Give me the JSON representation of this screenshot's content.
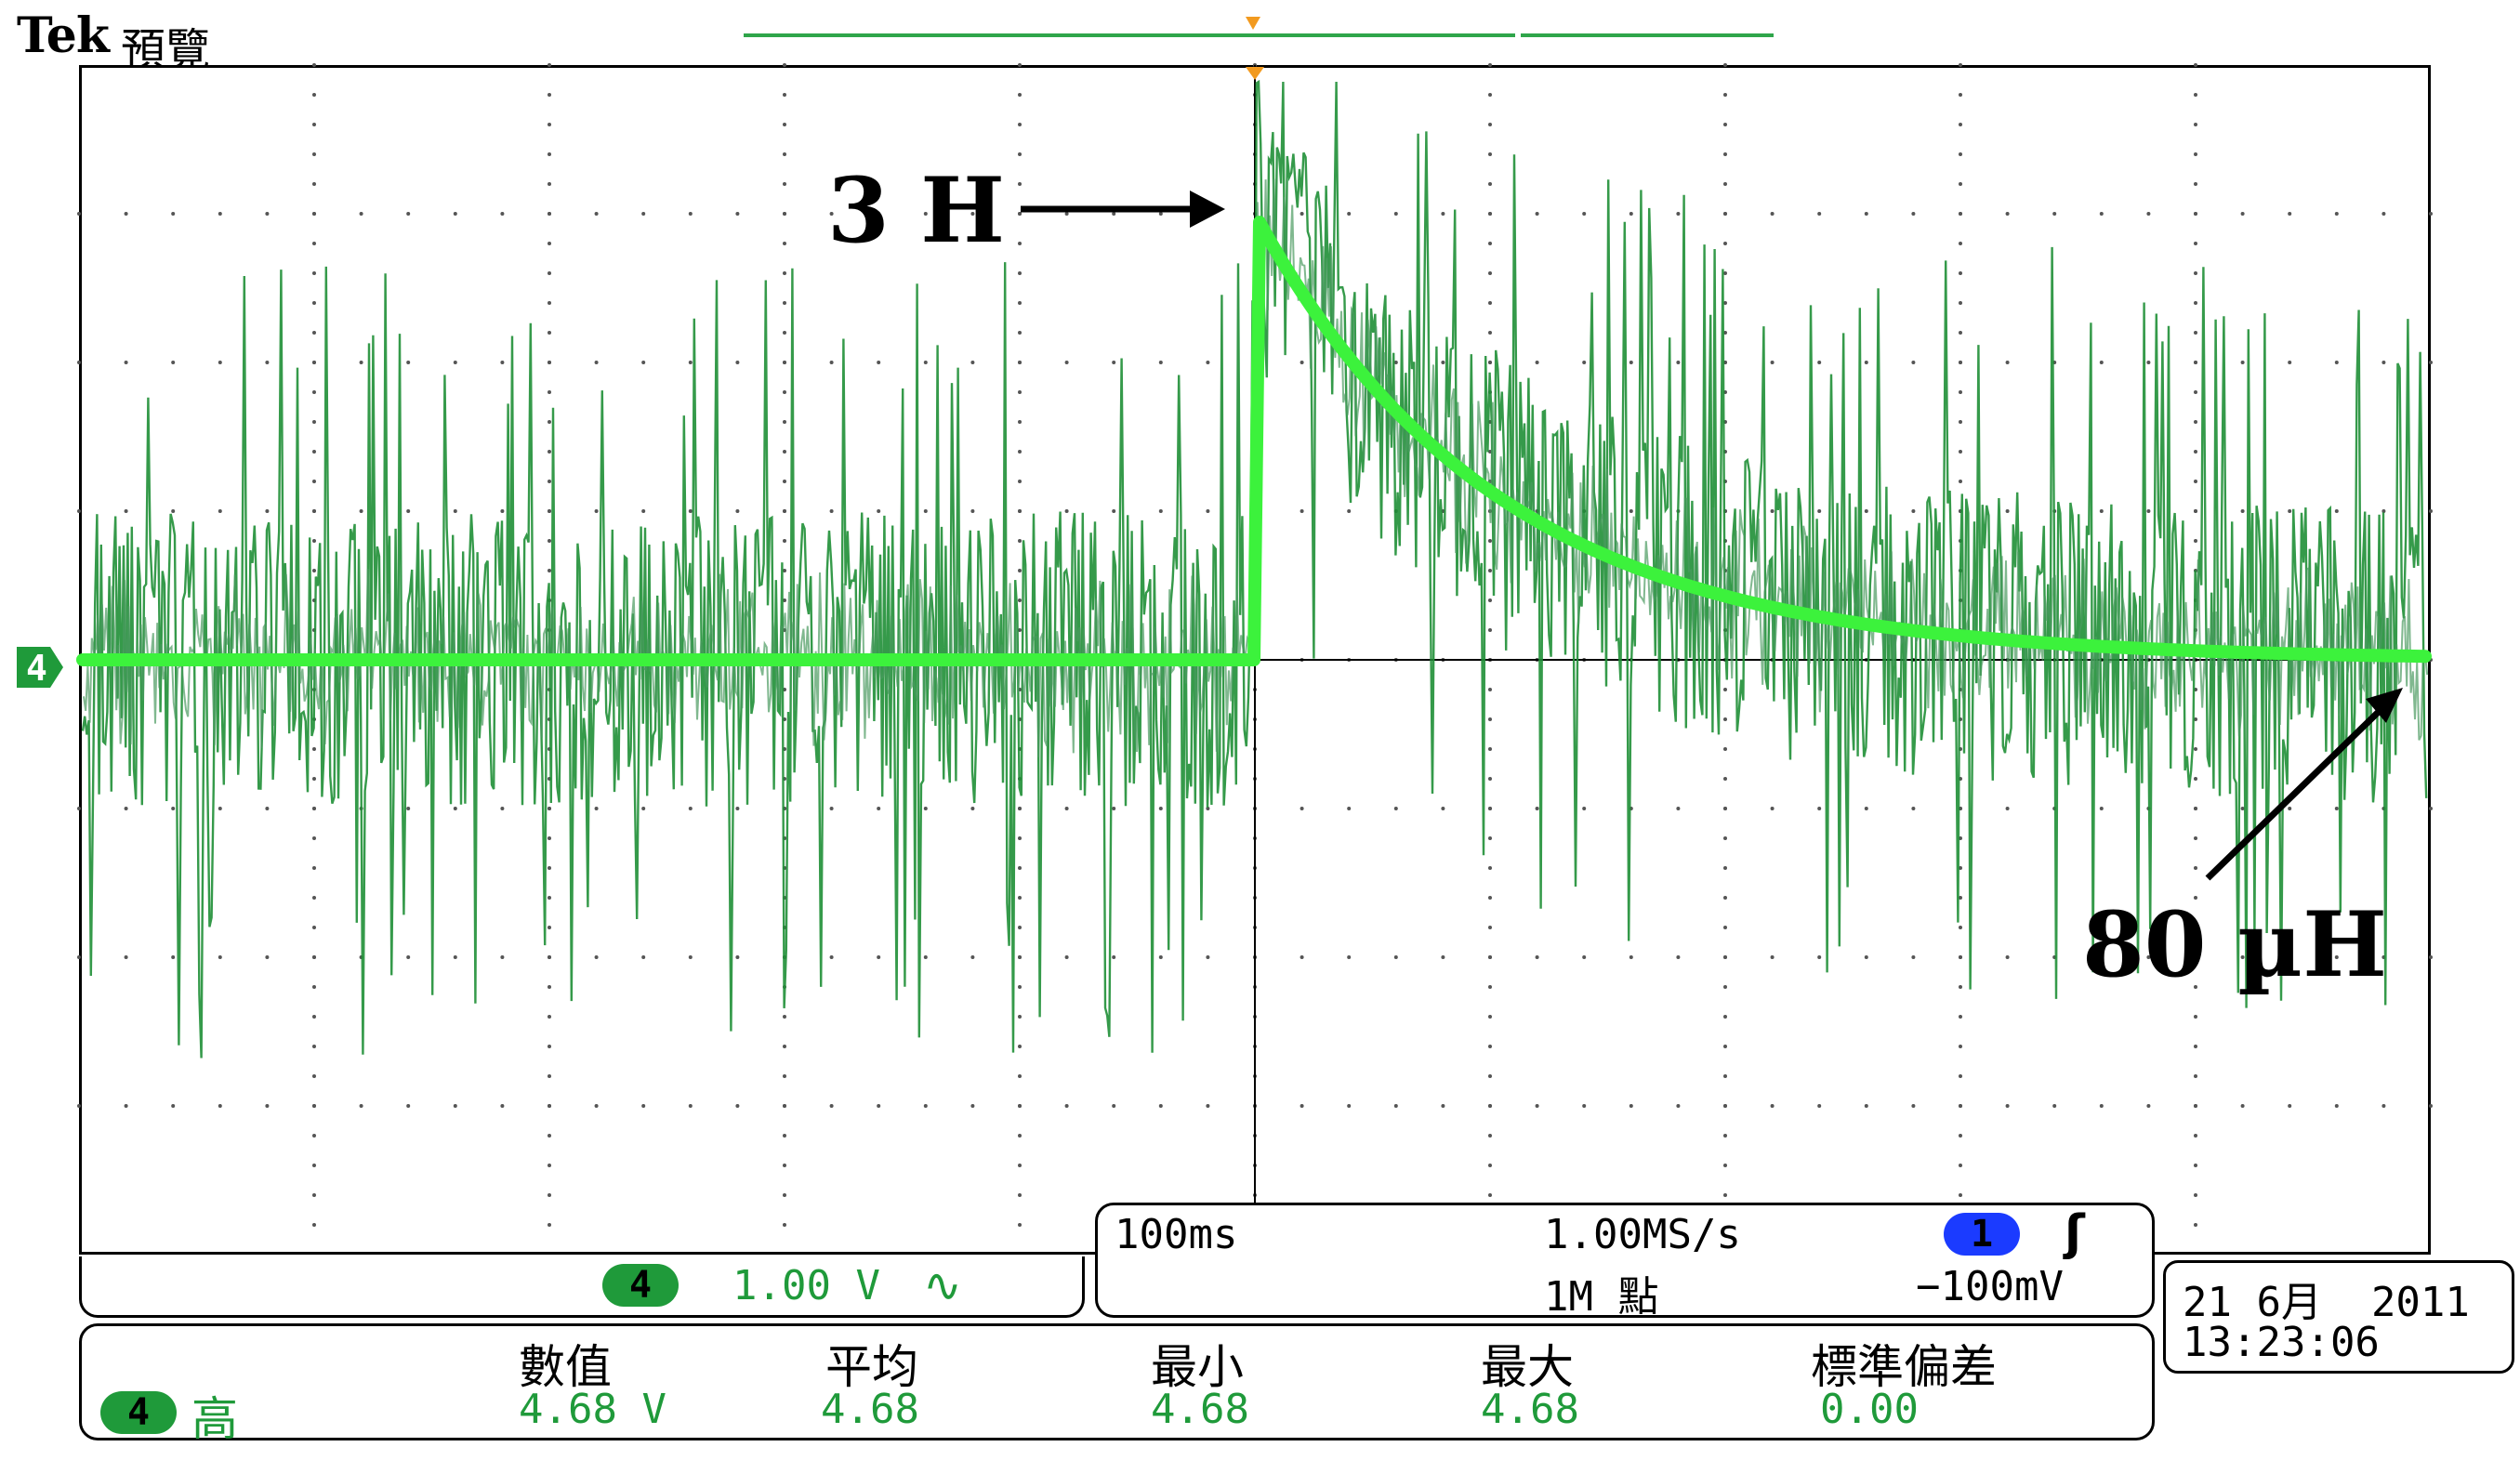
{
  "header": {
    "brand": "Tek",
    "mode": "預覽"
  },
  "annotations": {
    "left": "3 H",
    "right": "80 µH"
  },
  "channel": {
    "number": "4",
    "scale": "1.00 V",
    "coupling_symbol": "∿"
  },
  "acquisition": {
    "timebase": "100ms",
    "sample_rate": "1.00MS/s",
    "record_length": "1M 點",
    "trigger_source": "1",
    "trigger_slope_symbol": "ʃ",
    "trigger_level": "−100mV"
  },
  "datetime": {
    "date": "21 6月  2011",
    "time": "13:23:06"
  },
  "measurement": {
    "channel": "4",
    "type": "高",
    "columns": [
      {
        "label": "數值",
        "value": "4.68 V"
      },
      {
        "label": "平均",
        "value": "4.68"
      },
      {
        "label": "最小",
        "value": "4.68"
      },
      {
        "label": "最大",
        "value": "4.68"
      },
      {
        "label": "標準偏差",
        "value": "0.00"
      }
    ]
  },
  "colors": {
    "trace": "#1f9a3a",
    "trace_bright": "#3cf23c",
    "trigger": "#f29a1f",
    "channel_badge": "#1f9a3a",
    "trigger_badge": "#1b3bff"
  }
}
